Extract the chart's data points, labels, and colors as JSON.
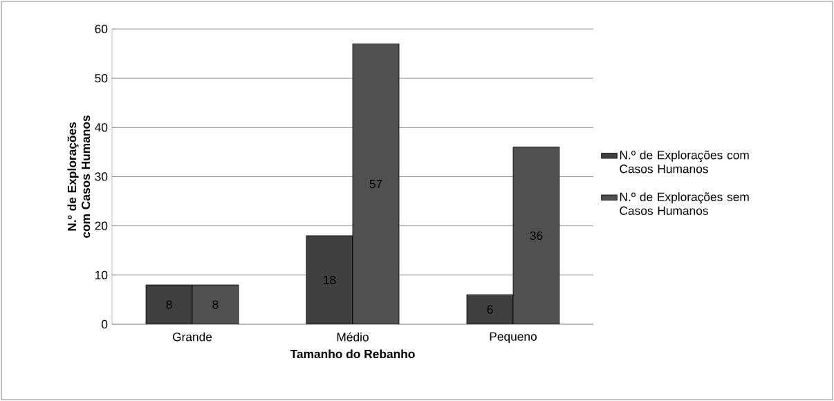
{
  "chart_data": {
    "type": "bar",
    "xlabel": "Tamanho do Rebanho",
    "ylabel": "N.º de Explorações com Casos Humanos",
    "categories": [
      "Grande",
      "Médio",
      "Pequeno"
    ],
    "series": [
      {
        "name": "N.º de Explorações com Casos Humanos",
        "color": "#404040",
        "values": [
          8,
          18,
          6
        ]
      },
      {
        "name": "N.º de Explorações sem Casos Humanos",
        "color": "#505050",
        "values": [
          8,
          57,
          36
        ]
      }
    ],
    "ylim": [
      0,
      60
    ],
    "yticks": [
      0,
      10,
      20,
      30,
      40,
      50,
      60
    ],
    "grid": "y",
    "legend": "right",
    "data_labels": true
  }
}
